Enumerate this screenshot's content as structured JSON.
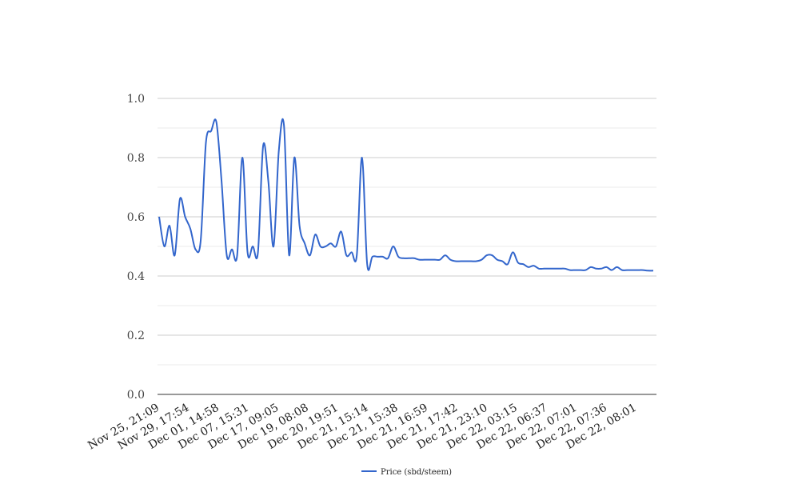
{
  "chart_data": {
    "type": "line",
    "title": "",
    "xlabel": "",
    "ylabel": "",
    "ylim": [
      0,
      1.0
    ],
    "yticks": [
      "0.0",
      "0.2",
      "0.4",
      "0.6",
      "0.8",
      "1.0"
    ],
    "xtick_labels": [
      "Nov 25, 21:09",
      "Nov 29, 17:54",
      "Dec 01, 14:58",
      "Dec 07, 15:31",
      "Dec 17, 09:05",
      "Dec 19, 08:08",
      "Dec 20, 19:51",
      "Dec 21, 15:14",
      "Dec 21, 15:38",
      "Dec 21, 16:59",
      "Dec 21, 17:42",
      "Dec 21, 23:10",
      "Dec 22, 03:15",
      "Dec 22, 06:37",
      "Dec 22, 07:01",
      "Dec 22, 07:36",
      "Dec 22, 08:01"
    ],
    "grid": true,
    "legend_position": "bottom",
    "series": [
      {
        "name": "Price (sbd/steem)",
        "color": "#3366cc",
        "values": [
          0.6,
          0.5,
          0.57,
          0.47,
          0.66,
          0.6,
          0.56,
          0.49,
          0.52,
          0.85,
          0.89,
          0.92,
          0.72,
          0.47,
          0.49,
          0.47,
          0.8,
          0.48,
          0.5,
          0.48,
          0.84,
          0.72,
          0.5,
          0.82,
          0.91,
          0.47,
          0.8,
          0.57,
          0.51,
          0.47,
          0.54,
          0.5,
          0.5,
          0.51,
          0.5,
          0.55,
          0.47,
          0.48,
          0.47,
          0.8,
          0.44,
          0.465,
          0.465,
          0.465,
          0.46,
          0.5,
          0.465,
          0.46,
          0.46,
          0.46,
          0.455,
          0.455,
          0.455,
          0.455,
          0.455,
          0.47,
          0.455,
          0.45,
          0.45,
          0.45,
          0.45,
          0.45,
          0.455,
          0.47,
          0.47,
          0.455,
          0.45,
          0.44,
          0.48,
          0.445,
          0.44,
          0.43,
          0.435,
          0.425,
          0.425,
          0.425,
          0.425,
          0.425,
          0.425,
          0.42,
          0.42,
          0.42,
          0.42,
          0.43,
          0.425,
          0.425,
          0.43,
          0.42,
          0.43,
          0.42,
          0.42,
          0.42,
          0.42,
          0.42,
          0.418,
          0.418
        ]
      }
    ]
  }
}
